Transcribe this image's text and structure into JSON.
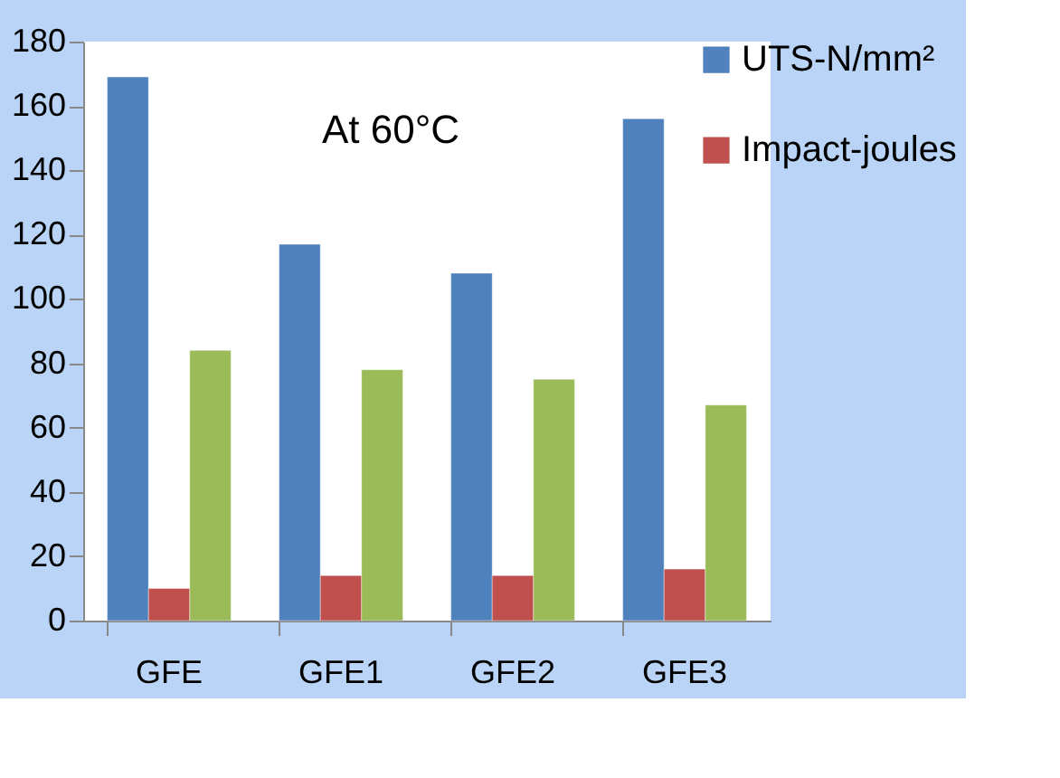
{
  "chart_data": {
    "type": "bar",
    "title": "At 60°C",
    "categories": [
      "GFE",
      "GFE1",
      "GFE2",
      "GFE3"
    ],
    "series": [
      {
        "name": "UTS-N/mm²",
        "color": "#4f81bd",
        "values": [
          169,
          117,
          108,
          156
        ]
      },
      {
        "name": "Impact-joules",
        "color": "#c0504d",
        "values": [
          10,
          14,
          14,
          16
        ]
      },
      {
        "color": "#9bbb59",
        "values": [
          84,
          78,
          75,
          67
        ]
      }
    ],
    "ylim": [
      0,
      180
    ],
    "yticks": [
      0,
      20,
      40,
      60,
      80,
      100,
      120,
      140,
      160,
      180
    ],
    "grid": false,
    "legend": "right"
  }
}
